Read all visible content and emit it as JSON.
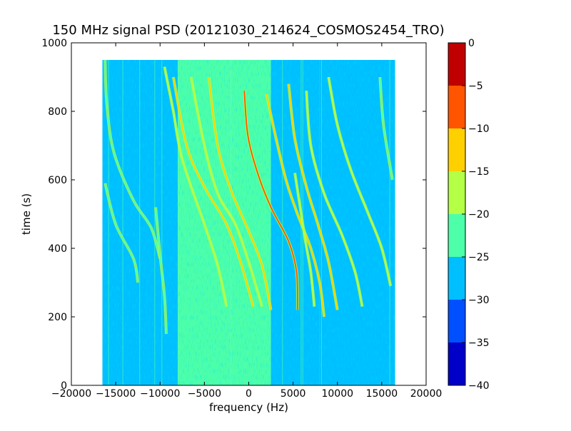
{
  "chart_data": {
    "type": "heatmap",
    "title": "150 MHz signal PSD (20121030_214624_COSMOS2454_TRO)",
    "xlabel": "frequency (Hz)",
    "ylabel": "time (s)",
    "xlim": [
      -20000,
      20000
    ],
    "ylim": [
      0,
      1000
    ],
    "x_ticks": [
      -20000,
      -15000,
      -10000,
      -5000,
      0,
      5000,
      10000,
      15000,
      20000
    ],
    "y_ticks": [
      0,
      200,
      400,
      600,
      800,
      1000
    ],
    "data_extent": {
      "x": [
        -16500,
        16500
      ],
      "y": [
        0,
        950
      ]
    },
    "grid": false,
    "background_levels": [
      {
        "x_range": [
          -16500,
          -8000
        ],
        "level_db": -28
      },
      {
        "x_range": [
          -8000,
          -2000
        ],
        "level_db": -24
      },
      {
        "x_range": [
          -2000,
          2500
        ],
        "level_db": -23
      },
      {
        "x_range": [
          2500,
          8000
        ],
        "level_db": -26
      },
      {
        "x_range": [
          8000,
          16500
        ],
        "level_db": -28
      }
    ],
    "doppler_traces": [
      {
        "points": [
          [
            -16200,
            590
          ],
          [
            -15000,
            470
          ],
          [
            -13000,
            370
          ],
          [
            -12500,
            300
          ]
        ],
        "level_db": -21
      },
      {
        "points": [
          [
            -16200,
            950
          ],
          [
            -16000,
            820
          ],
          [
            -15200,
            680
          ],
          [
            -13000,
            540
          ],
          [
            -11000,
            460
          ],
          [
            -10000,
            370
          ]
        ],
        "level_db": -21
      },
      {
        "points": [
          [
            -9500,
            930
          ],
          [
            -8500,
            800
          ],
          [
            -7500,
            660
          ],
          [
            -5000,
            470
          ],
          [
            -3500,
            350
          ],
          [
            -2500,
            230
          ]
        ],
        "level_db": -18
      },
      {
        "points": [
          [
            -8500,
            900
          ],
          [
            -7000,
            700
          ],
          [
            -5000,
            580
          ],
          [
            -2500,
            470
          ],
          [
            -800,
            350
          ],
          [
            500,
            230
          ]
        ],
        "level_db": -14
      },
      {
        "points": [
          [
            -6500,
            900
          ],
          [
            -5000,
            700
          ],
          [
            -3500,
            560
          ],
          [
            -1500,
            470
          ],
          [
            0,
            360
          ],
          [
            1500,
            230
          ]
        ],
        "level_db": -15
      },
      {
        "points": [
          [
            -4500,
            900
          ],
          [
            -3500,
            700
          ],
          [
            -2000,
            570
          ],
          [
            0,
            450
          ],
          [
            1500,
            350
          ],
          [
            2500,
            220
          ]
        ],
        "level_db": -12
      },
      {
        "points": [
          [
            -500,
            860
          ],
          [
            -100,
            730
          ],
          [
            1000,
            620
          ],
          [
            2500,
            520
          ],
          [
            4500,
            420
          ],
          [
            5400,
            330
          ],
          [
            5500,
            220
          ]
        ],
        "level_db": -6
      },
      {
        "points": [
          [
            2000,
            850
          ],
          [
            3000,
            730
          ],
          [
            4200,
            600
          ],
          [
            5500,
            500
          ],
          [
            7000,
            400
          ],
          [
            8000,
            300
          ],
          [
            8500,
            200
          ]
        ],
        "level_db": -12
      },
      {
        "points": [
          [
            4500,
            880
          ],
          [
            5200,
            720
          ],
          [
            6500,
            580
          ],
          [
            7800,
            470
          ],
          [
            9000,
            360
          ],
          [
            10000,
            220
          ]
        ],
        "level_db": -14
      },
      {
        "points": [
          [
            6500,
            860
          ],
          [
            7000,
            700
          ],
          [
            8500,
            560
          ],
          [
            10500,
            440
          ],
          [
            12000,
            330
          ],
          [
            12800,
            230
          ]
        ],
        "level_db": -17
      },
      {
        "points": [
          [
            9000,
            900
          ],
          [
            10000,
            760
          ],
          [
            11500,
            630
          ],
          [
            13500,
            500
          ],
          [
            15000,
            400
          ],
          [
            16000,
            290
          ]
        ],
        "level_db": -19
      },
      {
        "points": [
          [
            14800,
            900
          ],
          [
            15200,
            760
          ],
          [
            16200,
            600
          ]
        ],
        "level_db": -21
      },
      {
        "points": [
          [
            -10500,
            520
          ],
          [
            -10000,
            380
          ],
          [
            -9500,
            260
          ],
          [
            -9300,
            150
          ]
        ],
        "level_db": -22
      },
      {
        "points": [
          [
            5200,
            620
          ],
          [
            5800,
            520
          ],
          [
            6400,
            420
          ],
          [
            7000,
            330
          ],
          [
            7400,
            230
          ]
        ],
        "level_db": -19
      }
    ],
    "colorbar": {
      "levels": [
        0,
        -5,
        -10,
        -15,
        -20,
        -25,
        -30,
        -35,
        -40
      ],
      "colors": [
        "#c00000",
        "#ff5500",
        "#ffd000",
        "#b5ff46",
        "#4dffa8",
        "#00bfff",
        "#0050ff",
        "#0000c8"
      ]
    }
  }
}
